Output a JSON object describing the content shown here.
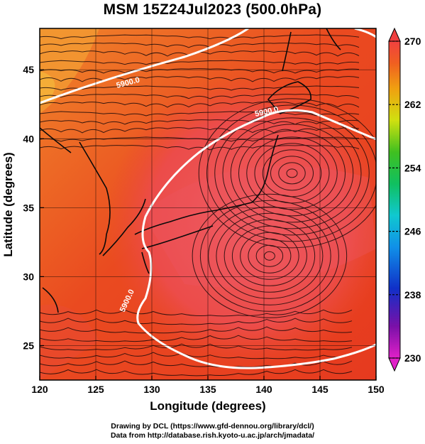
{
  "title": "MSM 15Z24Jul2023 (500.0hPa)",
  "x_axis": {
    "label": "Longitude (degrees)",
    "ticks": [
      "120",
      "125",
      "130",
      "135",
      "140",
      "145",
      "150"
    ]
  },
  "y_axis": {
    "label": "Latitude  (degrees)",
    "ticks": [
      "25",
      "30",
      "35",
      "40",
      "45"
    ]
  },
  "colorbar": {
    "ticks": [
      "270",
      "262",
      "254",
      "246",
      "238",
      "230"
    ],
    "min": 230,
    "max": 270
  },
  "contour_labels": [
    "5900.0",
    "5900.0",
    "5900.0"
  ],
  "credits": {
    "line1": "Drawing by DCL (https://www.gfd-dennou.org/library/dcl/)",
    "line2": "Data from http://database.rish.kyoto-u.ac.jp/arch/jmadata/"
  },
  "chart_data": {
    "type": "heatmap",
    "title": "MSM 15Z24Jul2023 (500.0hPa)",
    "xlabel": "Longitude (degrees)",
    "ylabel": "Latitude  (degrees)",
    "xlim": [
      120,
      150
    ],
    "ylim": [
      22.5,
      48
    ],
    "colorbar_range": [
      230,
      270
    ],
    "contour_level": 5900.0,
    "vortex_centers": [
      [
        142.5,
        37.5
      ],
      [
        140.5,
        31.5
      ]
    ]
  }
}
